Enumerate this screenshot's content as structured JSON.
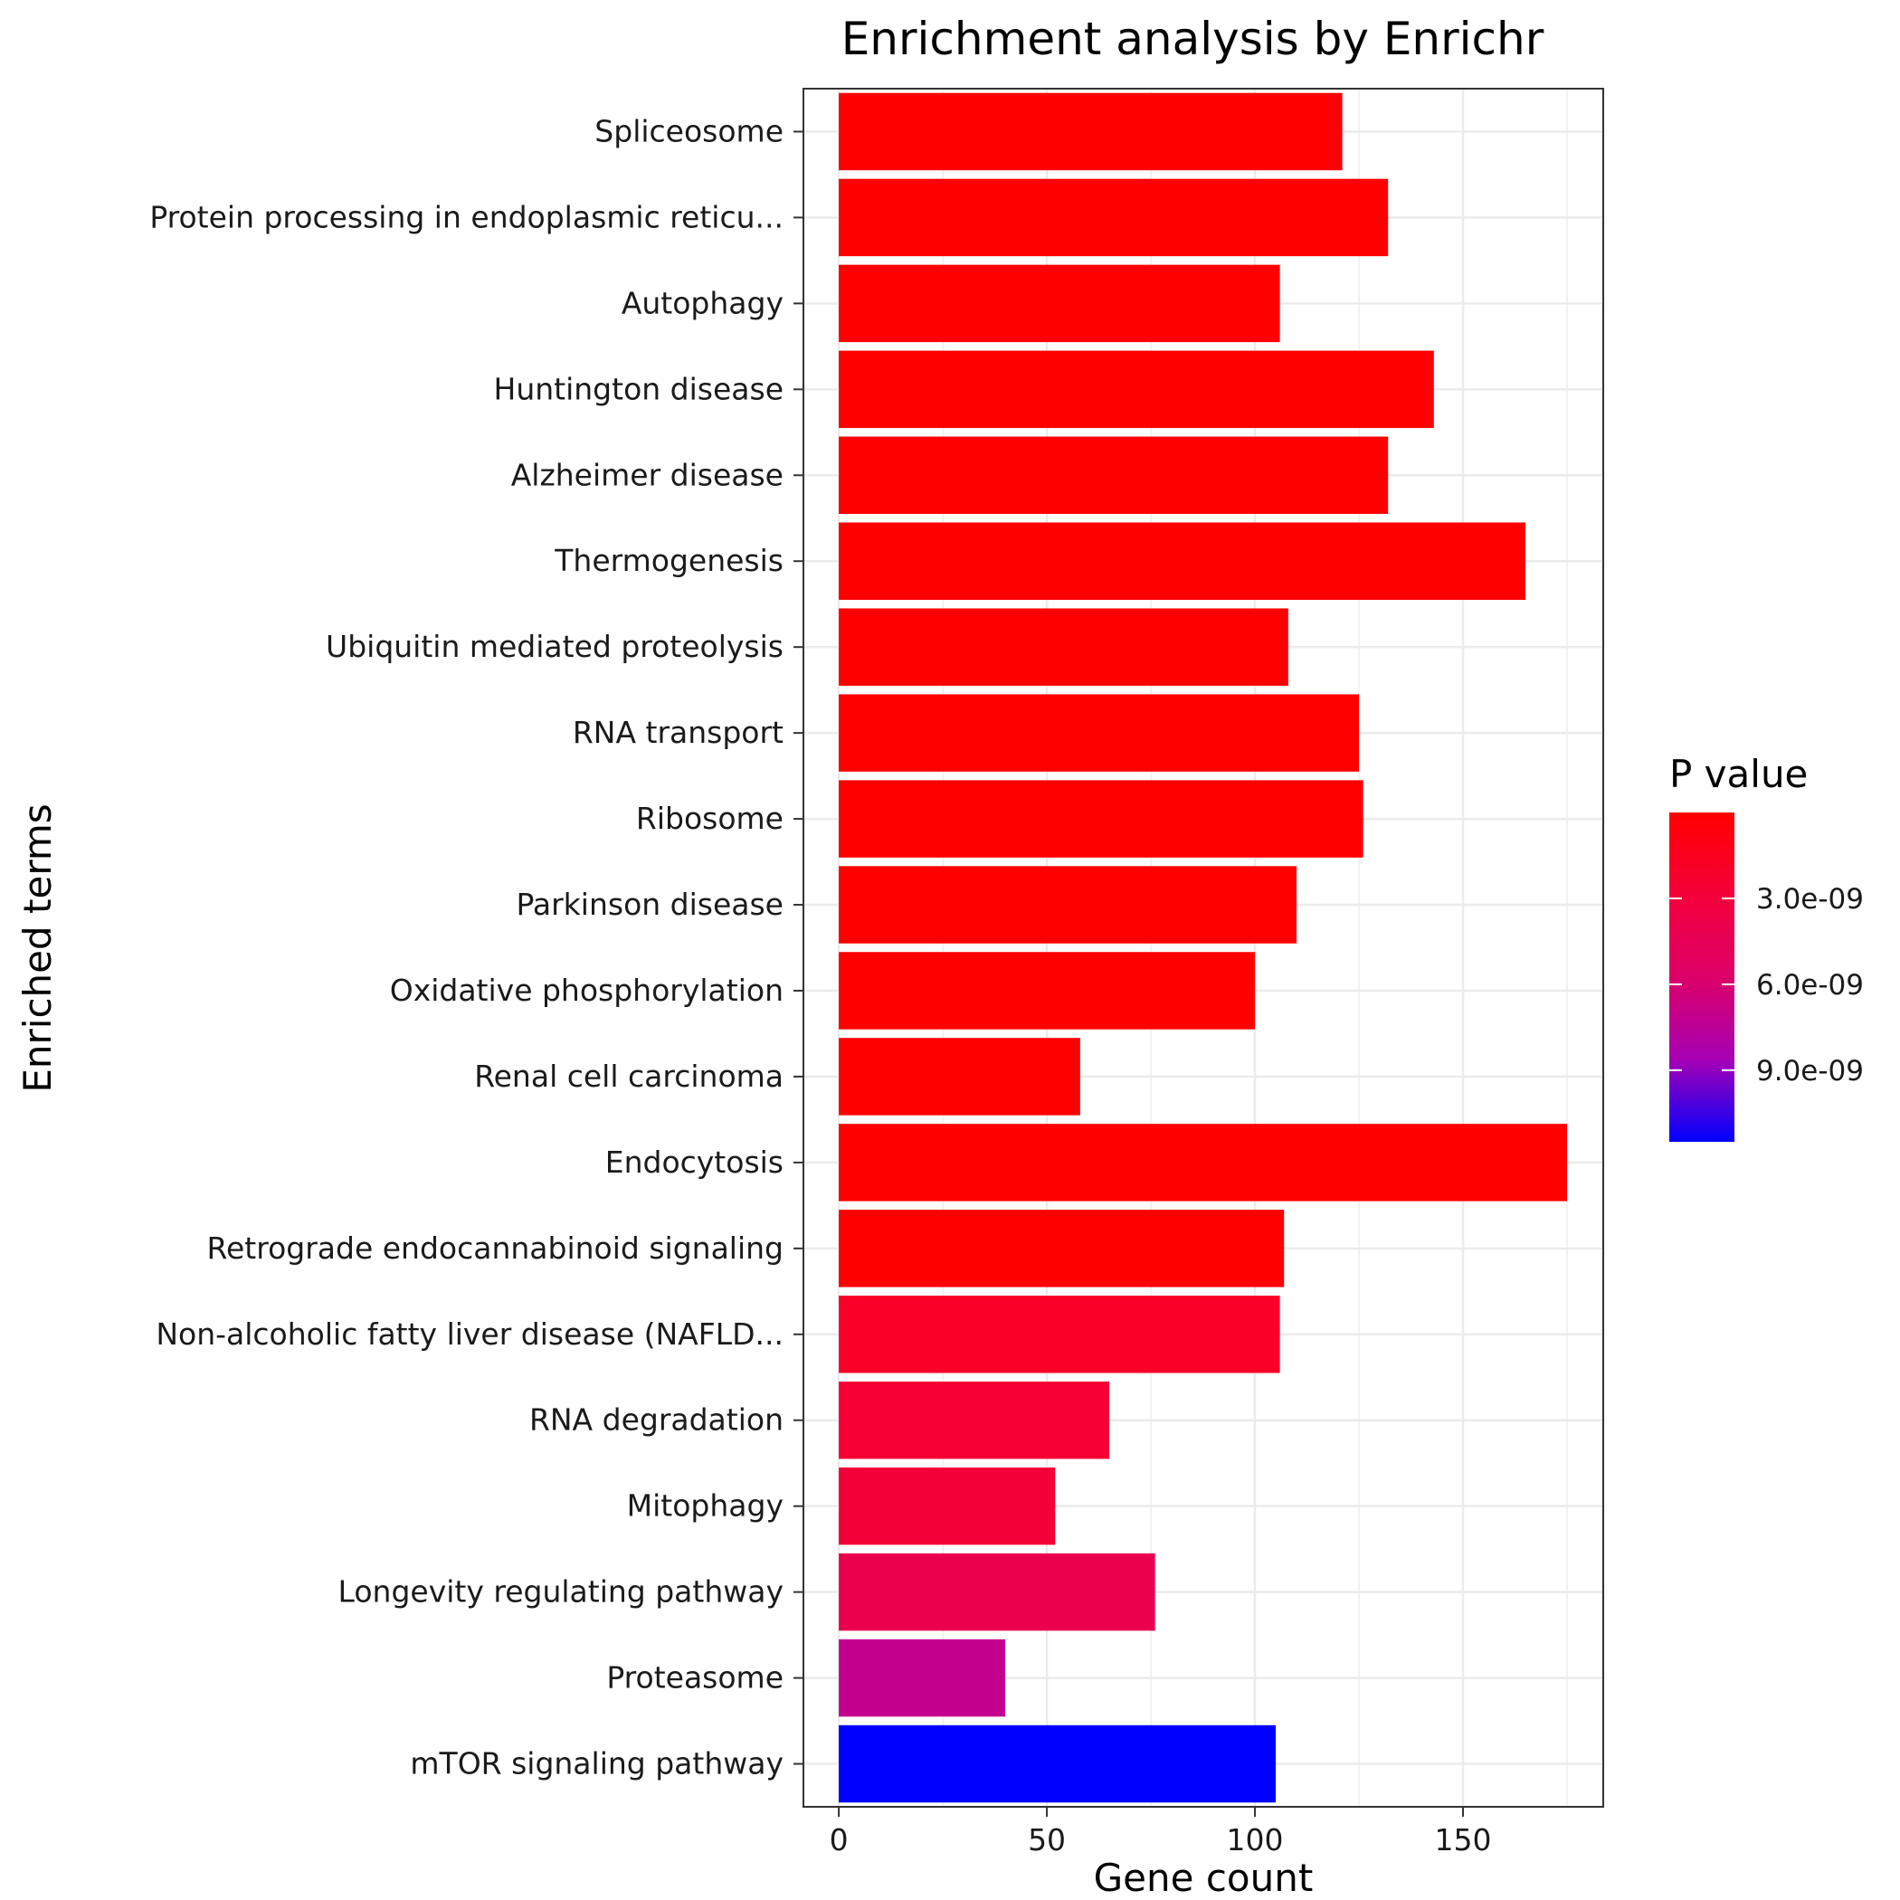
{
  "chart_data": {
    "type": "bar",
    "orientation": "horizontal",
    "title": "Enrichment analysis by Enrichr",
    "xlabel": "Gene count",
    "ylabel": "Enriched terms",
    "xlim": [
      -8.5,
      183.7
    ],
    "xticks": [
      0,
      50,
      100,
      150
    ],
    "grid": true,
    "legend_position": "right",
    "categories": [
      "Spliceosome",
      "Protein processing in endoplasmic reticu...",
      "Autophagy",
      "Huntington disease",
      "Alzheimer disease",
      "Thermogenesis",
      "Ubiquitin mediated proteolysis",
      "RNA transport",
      "Ribosome",
      "Parkinson disease",
      "Oxidative phosphorylation",
      "Renal cell carcinoma",
      "Endocytosis",
      "Retrograde endocannabinoid signaling",
      "Non-alcoholic fatty liver disease (NAFLD...",
      "RNA degradation",
      "Mitophagy",
      "Longevity regulating pathway",
      "Proteasome",
      "mTOR signaling pathway"
    ],
    "values": [
      121,
      132,
      106,
      143,
      132,
      165,
      108,
      125,
      126,
      110,
      100,
      58,
      175,
      107,
      106,
      65,
      52,
      76,
      40,
      105
    ],
    "bar_colors": [
      "#FF0000",
      "#FF0000",
      "#FF0000",
      "#FF0000",
      "#FF0000",
      "#FF0000",
      "#FF0000",
      "#FF0000",
      "#FF0000",
      "#FF0000",
      "#FF0000",
      "#FF0000",
      "#FF0000",
      "#FF0000",
      "#FA0028",
      "#F60036",
      "#F40038",
      "#EB004E",
      "#C4008E",
      "#0000FF"
    ],
    "color_legend": {
      "title": "P value",
      "low_color": "#FF0000",
      "high_color": "#0000FF",
      "ticks": [
        "3.0e-09",
        "6.0e-09",
        "9.0e-09"
      ],
      "tick_values": [
        3e-09,
        6e-09,
        9e-09
      ],
      "range": [
        0,
        1.15e-08
      ]
    }
  }
}
